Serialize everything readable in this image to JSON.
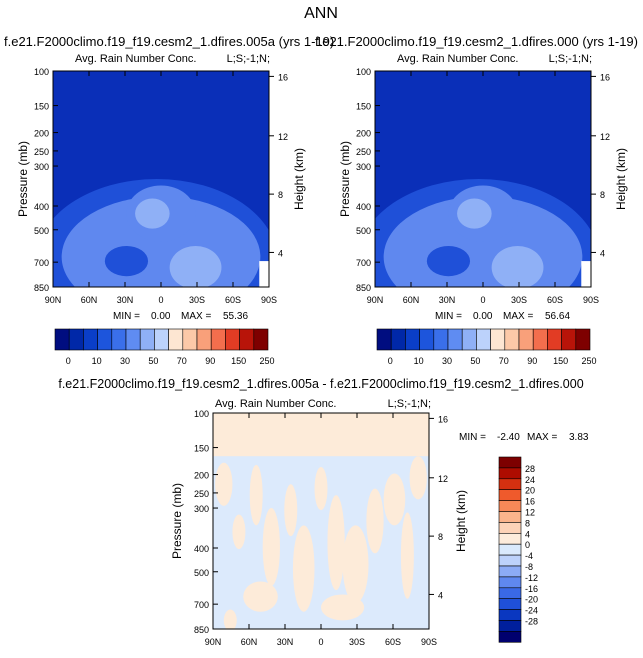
{
  "figure": {
    "title": "ANN",
    "colors": {
      "rain_scale": [
        "#000d80",
        "#0028a8",
        "#0a3ec8",
        "#1d55dc",
        "#3a6fea",
        "#5f8cf2",
        "#8fb0f6",
        "#bcd2fb",
        "#fde6d2",
        "#fcc9a8",
        "#f9a07a",
        "#f36e4d",
        "#e23c24",
        "#b81409",
        "#7e0000"
      ],
      "diff_scale": [
        "#00006e",
        "#001f9c",
        "#0a37c0",
        "#1f50d8",
        "#3a69e6",
        "#5f88ef",
        "#8cabf5",
        "#bdd2fb",
        "#daeafd",
        "#fdecdc",
        "#fdd3b8",
        "#fbb48c",
        "#f78858",
        "#ef5a2c",
        "#d53010",
        "#ad0c00",
        "#7d0000"
      ],
      "dark_blue": "#0a2fb8",
      "mid_blue": "#1f50d8",
      "light_blue": "#5f88ef",
      "pale_blue": "#8fb0f6",
      "diff_cream": "#fdebd9",
      "diff_lightblue": "#dceafc"
    }
  },
  "chart_data": [
    {
      "type": "contour",
      "panel": "top-left",
      "title": "f.e21.F2000climo.f19_f19.cesm2_1.dfires.005a (yrs 1-19)",
      "subtitle": "Avg. Rain Number Conc.",
      "right_label": "L;S;-1;N;",
      "ylabel": "Pressure (mb)",
      "ylabel_right": "Height (km)",
      "x_ticks": [
        "90N",
        "60N",
        "30N",
        "0",
        "30S",
        "60S",
        "90S"
      ],
      "y_ticks": [
        "100",
        "150",
        "200",
        "250",
        "300",
        "400",
        "500",
        "700",
        "850"
      ],
      "y_ticks_right": [
        "16",
        "12",
        "8",
        "4"
      ],
      "stats": {
        "min_label": "MIN =",
        "min": "0.00",
        "max_label": "MAX =",
        "max": "55.36"
      },
      "colorbar_labels": [
        "0",
        "10",
        "30",
        "50",
        "70",
        "90",
        "150",
        "250"
      ]
    },
    {
      "type": "contour",
      "panel": "top-right",
      "title": "f.e21.F2000climo.f19_f19.cesm2_1.dfires.000 (yrs 1-19)",
      "subtitle": "Avg. Rain Number Conc.",
      "right_label": "L;S;-1;N;",
      "ylabel": "Pressure (mb)",
      "ylabel_right": "Height (km)",
      "x_ticks": [
        "90N",
        "60N",
        "30N",
        "0",
        "30S",
        "60S",
        "90S"
      ],
      "y_ticks": [
        "100",
        "150",
        "200",
        "250",
        "300",
        "400",
        "500",
        "700",
        "850"
      ],
      "y_ticks_right": [
        "16",
        "12",
        "8",
        "4"
      ],
      "stats": {
        "min_label": "MIN =",
        "min": "0.00",
        "max_label": "MAX =",
        "max": "56.64"
      },
      "colorbar_labels": [
        "0",
        "10",
        "30",
        "50",
        "70",
        "90",
        "150",
        "250"
      ]
    },
    {
      "type": "contour",
      "panel": "bottom",
      "title": "f.e21.F2000climo.f19_f19.cesm2_1.dfires.005a - f.e21.F2000climo.f19_f19.cesm2_1.dfires.000",
      "subtitle": "Avg. Rain Number Conc.",
      "right_label": "L;S;-1;N;",
      "ylabel": "Pressure (mb)",
      "ylabel_right": "Height (km)",
      "x_ticks": [
        "90N",
        "60N",
        "30N",
        "0",
        "30S",
        "60S",
        "90S"
      ],
      "y_ticks": [
        "100",
        "150",
        "200",
        "250",
        "300",
        "400",
        "500",
        "700",
        "850"
      ],
      "y_ticks_right": [
        "16",
        "12",
        "8",
        "4"
      ],
      "stats": {
        "min_label": "MIN =",
        "min": "-2.40",
        "max_label": "MAX =",
        "max": "3.83"
      },
      "colorbar_labels": [
        "28",
        "24",
        "20",
        "16",
        "12",
        "8",
        "4",
        "0",
        "-4",
        "-8",
        "-12",
        "-16",
        "-20",
        "-24",
        "-28"
      ]
    }
  ]
}
